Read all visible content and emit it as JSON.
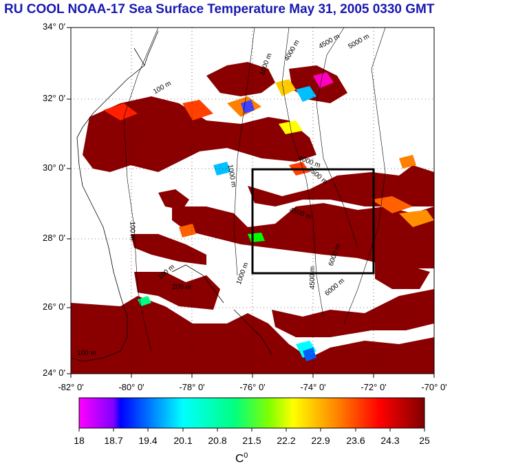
{
  "title": "RU COOL  NOAA-17 Sea Surface Temperature May 31, 2005 0330 GMT",
  "lat_labels": [
    "34° 0'",
    "32° 0'",
    "30° 0'",
    "28° 0'",
    "26° 0'",
    "24° 0'"
  ],
  "lon_labels": [
    "-82° 0'",
    "-80° 0'",
    "-78° 0'",
    "-76° 0'",
    "-74° 0'",
    "-72° 0'",
    "-70° 0'"
  ],
  "map_extent": {
    "lon_min": -82,
    "lon_max": -70,
    "lat_min": 24,
    "lat_max": 34
  },
  "study_box": {
    "lon_min": -76,
    "lon_max": -72,
    "lat_min": 27,
    "lat_max": 30
  },
  "isobath_labels": [
    "100 m",
    "1000 m",
    "4000 m",
    "4500 m",
    "5000 m",
    "6000 m",
    "3500 m",
    "200 m"
  ],
  "colorbar": {
    "ticks": [
      "18",
      "18.7",
      "19.4",
      "20.1",
      "20.8",
      "21.5",
      "22.2",
      "22.9",
      "23.6",
      "24.3",
      "25"
    ],
    "unit_text": "C",
    "unit_sup": "0",
    "colors": [
      "#ff00ff",
      "#0000ff",
      "#00ffff",
      "#00ff00",
      "#ffff00",
      "#ff8000",
      "#ff0000",
      "#800000"
    ]
  },
  "colors": {
    "title": "#1818b0",
    "land": "#ffffff",
    "cloud": "#ffffff",
    "warm_water": "#8a0000"
  }
}
